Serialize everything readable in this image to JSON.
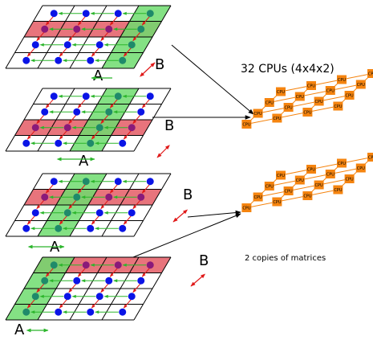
{
  "title": "32 CPUs (4x4x2)",
  "caption": "2 copies of matrices",
  "axis_a": "A",
  "axis_b": "B",
  "cpu_label": "CPU",
  "colors": {
    "row_highlight": "#e8747c",
    "col_highlight": "#6fdc6f",
    "grid_line": "#000000",
    "dot_blue": "#0a14e6",
    "dot_purple": "#8a1a7a",
    "dot_teal": "#1f8a6a",
    "arrow_green": "#2bb52b",
    "arrow_red": "#e01a1a",
    "cpu_fill": "#f5840f",
    "cpu_link": "#f5840f"
  }
}
